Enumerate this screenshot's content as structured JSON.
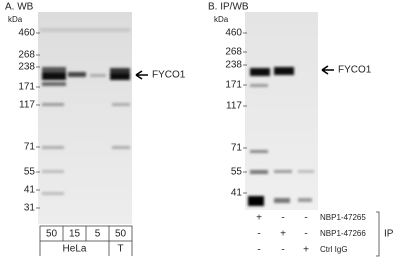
{
  "panels": [
    {
      "label": "A. WB",
      "unit": "kDa",
      "markers": [
        "460",
        "268",
        "238",
        "171",
        "117",
        "71",
        "55",
        "41",
        "31"
      ],
      "target": "FYCO1",
      "lanes": [
        "50",
        "15",
        "5",
        "50"
      ],
      "groups": [
        "HeLa",
        "T"
      ]
    },
    {
      "label": "B. IP/WB",
      "unit": "kDa",
      "markers": [
        "460",
        "268",
        "238",
        "171",
        "117",
        "71",
        "55",
        "41"
      ],
      "target": "FYCO1",
      "conditions": [
        {
          "signs": [
            "+",
            "-",
            "-"
          ],
          "name": "NBP1-47265"
        },
        {
          "signs": [
            "-",
            "+",
            "-"
          ],
          "name": "NBP1-47266"
        },
        {
          "signs": [
            "-",
            "-",
            "+"
          ],
          "name": "Ctrl IgG"
        }
      ],
      "method": "IP"
    }
  ]
}
